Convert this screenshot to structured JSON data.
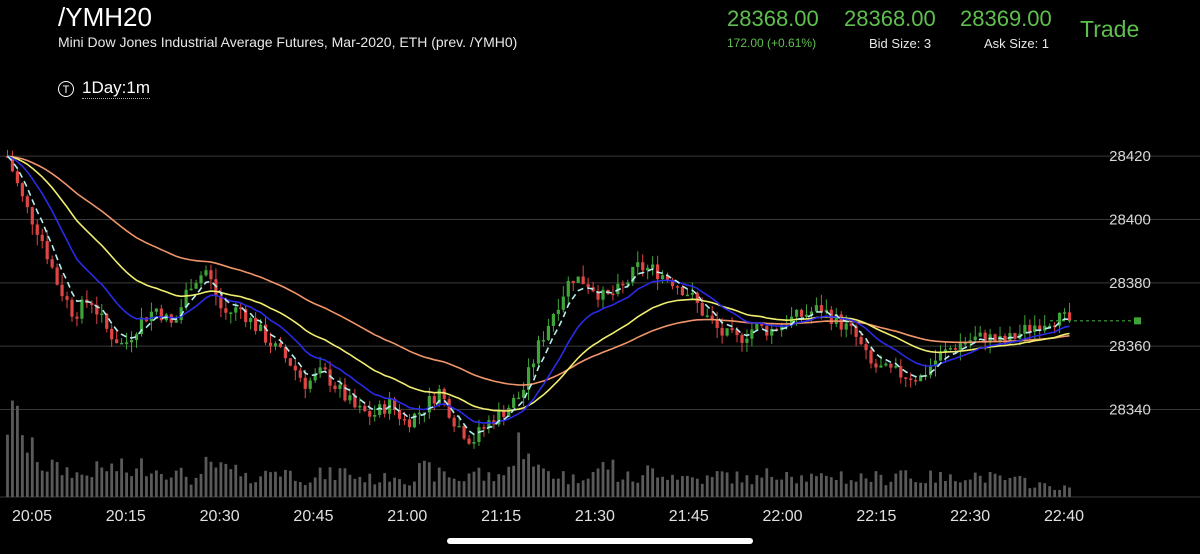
{
  "header": {
    "symbol": "/YMH20",
    "description": "Mini Dow Jones Industrial Average Futures, Mar-2020, ETH (prev. /YMH0)",
    "last": "28368.00",
    "change": "172.00 (+0.61%)",
    "bid": "28368.00",
    "bid_size": "Bid Size: 3",
    "ask": "28369.00",
    "ask_size": "Ask Size: 1",
    "trade_label": "Trade",
    "timeframe": "1Day:1m",
    "timeframe_icon": "T"
  },
  "colors": {
    "up": "#3fa53a",
    "down": "#e04545",
    "ema_fast": "#b8f0f0",
    "ema_mid": "#2a2ae8",
    "ema_slow": "#f0ee70",
    "ema_long": "#f0956a",
    "volume": "#5a5a5a",
    "grid": "#3a3a3a"
  },
  "chart_data": {
    "type": "candlestick",
    "x_ticks": [
      "20:05",
      "20:15",
      "20:30",
      "20:45",
      "21:00",
      "21:15",
      "21:30",
      "21:45",
      "22:00",
      "22:15",
      "22:30",
      "22:40"
    ],
    "y_ticks": [
      28340,
      28360,
      28380,
      28400,
      28420
    ],
    "ylim": [
      28325,
      28433
    ],
    "last_price": 28368,
    "price_path": [
      28420,
      28405,
      28395,
      28380,
      28370,
      28375,
      28365,
      28360,
      28368,
      28372,
      28366,
      28380,
      28384,
      28370,
      28372,
      28366,
      28360,
      28355,
      28348,
      28352,
      28346,
      28340,
      28338,
      28342,
      28336,
      28340,
      28346,
      28336,
      28330,
      28336,
      28340,
      28345,
      28360,
      28372,
      28382,
      28380,
      28375,
      28378,
      28385,
      28384,
      28381,
      28377,
      28370,
      28364,
      28362,
      28366,
      28365,
      28368,
      28370,
      28372,
      28368,
      28364,
      28354,
      28352,
      28351,
      28350,
      28356,
      28360,
      28362,
      28363,
      28361,
      28364,
      28367,
      28369,
      28368
    ],
    "volume_profile": [
      0.85,
      0.5,
      0.35,
      0.3,
      0.25,
      0.3,
      0.32,
      0.28,
      0.35,
      0.3,
      0.25,
      0.2,
      0.35,
      0.3,
      0.2,
      0.25,
      0.3,
      0.25,
      0.2,
      0.25,
      0.28,
      0.22,
      0.2,
      0.25,
      0.2,
      0.3,
      0.25,
      0.2,
      0.28,
      0.22,
      0.35,
      0.6,
      0.3,
      0.25,
      0.2,
      0.28,
      0.35,
      0.22,
      0.2,
      0.3,
      0.25,
      0.22,
      0.2,
      0.25,
      0.22,
      0.2,
      0.25,
      0.3,
      0.22,
      0.2,
      0.25,
      0.2,
      0.22,
      0.2,
      0.3,
      0.2,
      0.22,
      0.2,
      0.25,
      0.22,
      0.2,
      0.18,
      0.15,
      0.12,
      0.1
    ]
  }
}
